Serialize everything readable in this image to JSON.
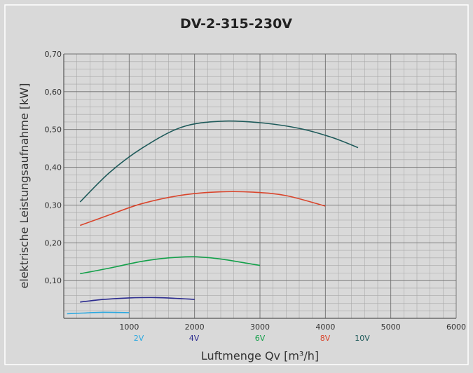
{
  "chart_data": {
    "type": "line",
    "title": "DV-2-315-230V",
    "xlabel": "Luftmenge Qv [m³/h]",
    "ylabel": "elektrische Leistungsaufnahme [kW]",
    "xlim": [
      0,
      6000
    ],
    "ylim": [
      0,
      0.7
    ],
    "x_ticks": [
      "1000",
      "2000",
      "3000",
      "4000",
      "5000",
      "6000"
    ],
    "x_tick_values": [
      1000,
      2000,
      3000,
      4000,
      5000,
      6000
    ],
    "y_ticks": [
      "0,10",
      "0,20",
      "0,30",
      "0,40",
      "0,50",
      "0,60",
      "0,70"
    ],
    "y_tick_values": [
      0.1,
      0.2,
      0.3,
      0.4,
      0.5,
      0.6,
      0.7
    ],
    "grid": true,
    "legend_placement": "bottom, under x-axis",
    "series": [
      {
        "name": "2V",
        "color": "#2aa8e0",
        "x": [
          50,
          300,
          600,
          1000
        ],
        "y": [
          0.012,
          0.014,
          0.016,
          0.015
        ]
      },
      {
        "name": "4V",
        "color": "#2b2b8f",
        "x": [
          250,
          600,
          1000,
          1400,
          1700,
          2000
        ],
        "y": [
          0.043,
          0.05,
          0.054,
          0.055,
          0.053,
          0.05
        ]
      },
      {
        "name": "6V",
        "color": "#13a04a",
        "x": [
          250,
          700,
          1200,
          1600,
          2000,
          2400,
          2800,
          3000
        ],
        "y": [
          0.118,
          0.133,
          0.151,
          0.16,
          0.163,
          0.157,
          0.146,
          0.14
        ]
      },
      {
        "name": "8V",
        "color": "#d9442b",
        "x": [
          250,
          700,
          1200,
          1800,
          2400,
          2900,
          3400,
          4000
        ],
        "y": [
          0.246,
          0.274,
          0.304,
          0.326,
          0.335,
          0.334,
          0.325,
          0.297
        ]
      },
      {
        "name": "10V",
        "color": "#1e5a5a",
        "x": [
          250,
          700,
          1200,
          1800,
          2400,
          3000,
          3600,
          4100,
          4500
        ],
        "y": [
          0.308,
          0.386,
          0.451,
          0.506,
          0.522,
          0.518,
          0.503,
          0.479,
          0.452
        ]
      }
    ]
  }
}
